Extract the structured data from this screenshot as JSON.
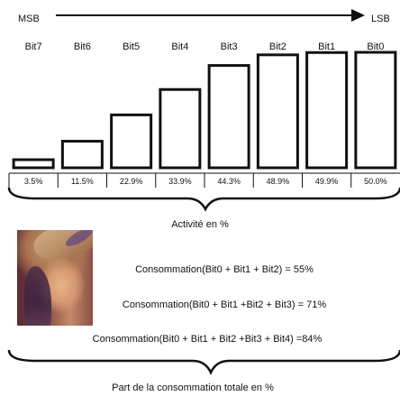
{
  "msb_label": "MSB",
  "lsb_label": "LSB",
  "chart_data": {
    "type": "bar",
    "categories": [
      "Bit7",
      "Bit6",
      "Bit5",
      "Bit4",
      "Bit3",
      "Bit2",
      "Bit1",
      "Bit0"
    ],
    "values": [
      3.5,
      11.5,
      22.9,
      33.9,
      44.3,
      48.9,
      49.9,
      50.0
    ],
    "value_labels": [
      "3.5%",
      "11.5%",
      "22.9%",
      "33.9%",
      "44.3%",
      "48.9%",
      "49.9%",
      "50.0%"
    ],
    "ylim": [
      0,
      50
    ],
    "caption": "Activité en %"
  },
  "formulas": [
    "Consommation(Bit0 + Bit1 + Bit2) = 55%",
    "Consommation(Bit0 + Bit1 +Bit2 + Bit3) = 71%",
    "Consommation(Bit0 + Bit1 + Bit2 +Bit3 + Bit4) =84%"
  ],
  "bottom_caption": "Part de la consommation totale en %"
}
